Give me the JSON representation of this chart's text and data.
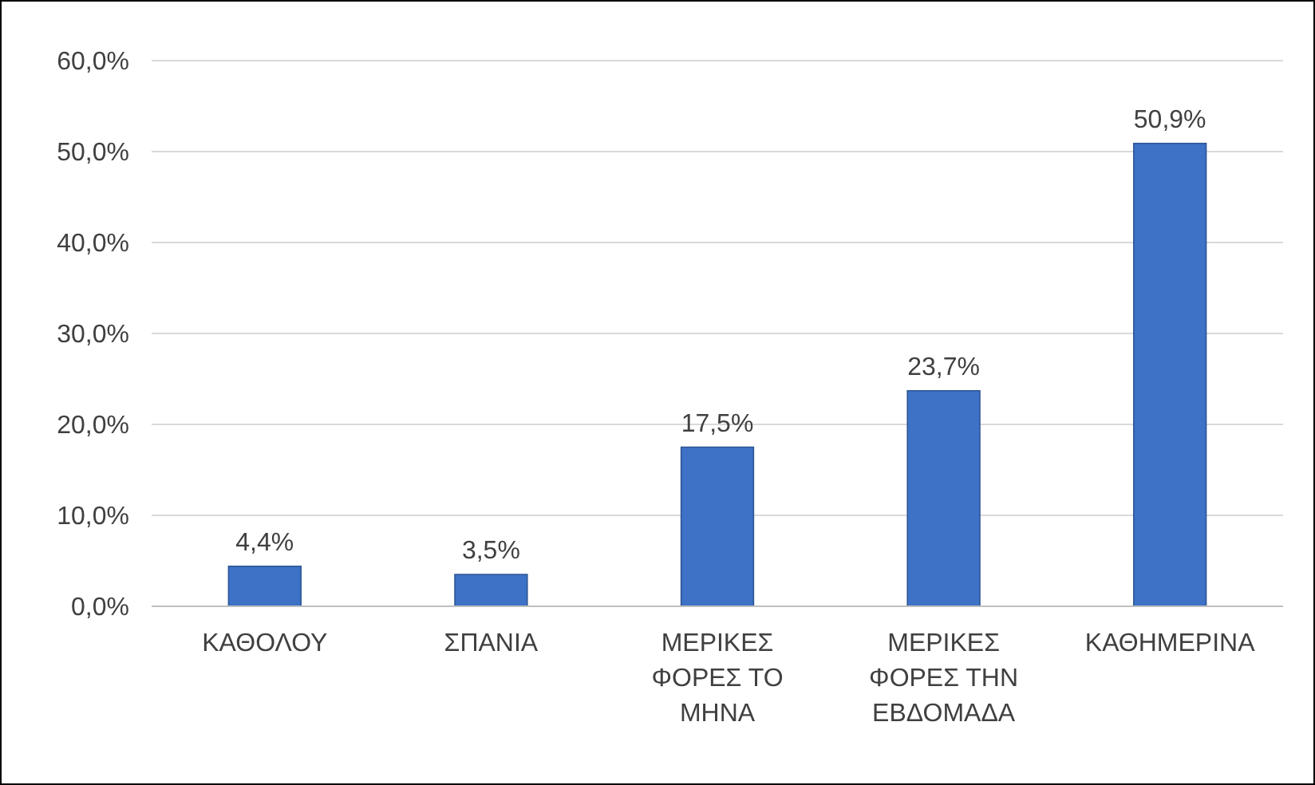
{
  "chart_data": {
    "type": "bar",
    "categories": [
      "ΚΑΘΟΛΟΥ",
      "ΣΠΑΝΙΑ",
      "ΜΕΡΙΚΕΣ ΦΟΡΕΣ ΤΟ ΜΗΝΑ",
      "ΜΕΡΙΚΕΣ ΦΟΡΕΣ ΤΗΝ ΕΒΔΟΜΑΔΑ",
      "ΚΑΘΗΜΕΡΙΝΑ"
    ],
    "values": [
      4.4,
      3.5,
      17.5,
      23.7,
      50.9
    ],
    "value_labels": [
      "4,4%",
      "3,5%",
      "17,5%",
      "23,7%",
      "50,9%"
    ],
    "color": "#3d72c6",
    "ylim": [
      0,
      60
    ],
    "yticks": [
      {
        "value": 0,
        "label": "0,0%"
      },
      {
        "value": 10,
        "label": "10,0%"
      },
      {
        "value": 20,
        "label": "20,0%"
      },
      {
        "value": 30,
        "label": "30,0%"
      },
      {
        "value": 40,
        "label": "40,0%"
      },
      {
        "value": 50,
        "label": "50,0%"
      },
      {
        "value": 60,
        "label": "60,0%"
      }
    ],
    "grid": "y"
  }
}
